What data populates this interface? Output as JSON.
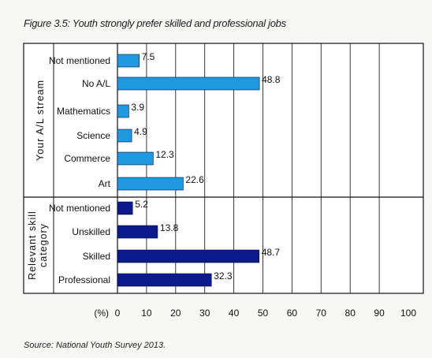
{
  "figure_title": "Figure 3.5: Youth strongly prefer skilled and professional jobs",
  "source": "Source: National Youth Survey 2013.",
  "colors": {
    "stream_bar": "#1e9be0",
    "skill_bar": "#0b1a8c",
    "axis": "#111111",
    "grid": "#222222"
  },
  "chart_data": {
    "type": "bar",
    "orientation": "horizontal",
    "xlabel": "(%)",
    "xlim": [
      0,
      100
    ],
    "xticks": [
      "0",
      "10",
      "20",
      "30",
      "40",
      "50",
      "60",
      "70",
      "80",
      "90",
      "100"
    ],
    "grid": true,
    "groups": [
      {
        "label": "Your A/L stream",
        "color_key": "stream_bar",
        "categories": [
          "Not mentioned",
          "No A/L",
          "Mathematics",
          "Science",
          "Commerce",
          "Art"
        ],
        "values": [
          7.5,
          48.8,
          3.9,
          4.9,
          12.3,
          22.6
        ],
        "value_labels": [
          "7.5",
          "48.8",
          "3.9",
          "4.9",
          "12.3",
          "22.6"
        ]
      },
      {
        "label": "Relevant skill category",
        "color_key": "skill_bar",
        "categories": [
          "Not mentioned",
          "Unskilled",
          "Skilled",
          "Professional"
        ],
        "values": [
          5.2,
          13.8,
          48.7,
          32.3
        ],
        "value_labels": [
          "5.2",
          "13.8",
          "48.7",
          "32.3"
        ]
      }
    ]
  }
}
